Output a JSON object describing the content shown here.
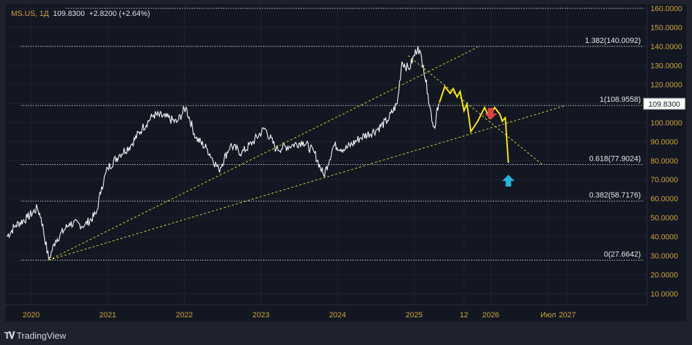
{
  "legend": {
    "symbol": "MS.US, 1Д",
    "price": "109.8300",
    "change": "+2.8200 (+2.64%)"
  },
  "brand": "TradingView",
  "chart_data": {
    "type": "line",
    "title": "MS.US, 1Д",
    "ylim": [
      5,
      165
    ],
    "yticks": [
      160,
      150,
      140,
      130,
      120,
      110,
      100,
      90,
      80,
      70,
      60,
      50,
      40,
      30,
      20,
      10
    ],
    "xticks": [
      {
        "t": 2020,
        "label": "2020"
      },
      {
        "t": 2021,
        "label": "2021"
      },
      {
        "t": 2022,
        "label": "2022"
      },
      {
        "t": 2023,
        "label": "2023"
      },
      {
        "t": 2024,
        "label": "2024"
      },
      {
        "t": 2025,
        "label": "2025"
      },
      {
        "t": 2025.65,
        "label": "12"
      },
      {
        "t": 2026,
        "label": "2026"
      },
      {
        "t": 2026.75,
        "label": "Июл"
      },
      {
        "t": 2027,
        "label": "2027"
      }
    ],
    "current_price": {
      "value": 109.83,
      "label": "109.8300"
    },
    "price_series": [
      [
        2019.68,
        40
      ],
      [
        2019.8,
        46
      ],
      [
        2019.95,
        50
      ],
      [
        2020.08,
        55
      ],
      [
        2020.13,
        50
      ],
      [
        2020.23,
        28
      ],
      [
        2020.32,
        38
      ],
      [
        2020.5,
        47
      ],
      [
        2020.7,
        46
      ],
      [
        2020.85,
        52
      ],
      [
        2020.92,
        66
      ],
      [
        2021.0,
        76
      ],
      [
        2021.15,
        83
      ],
      [
        2021.3,
        88
      ],
      [
        2021.45,
        97
      ],
      [
        2021.6,
        104
      ],
      [
        2021.75,
        103
      ],
      [
        2021.9,
        100
      ],
      [
        2022.02,
        108
      ],
      [
        2022.15,
        92
      ],
      [
        2022.3,
        86
      ],
      [
        2022.45,
        75
      ],
      [
        2022.6,
        88
      ],
      [
        2022.75,
        84
      ],
      [
        2022.9,
        90
      ],
      [
        2023.05,
        97
      ],
      [
        2023.2,
        86
      ],
      [
        2023.4,
        88
      ],
      [
        2023.55,
        90
      ],
      [
        2023.7,
        84
      ],
      [
        2023.82,
        72
      ],
      [
        2023.95,
        88
      ],
      [
        2024.1,
        86
      ],
      [
        2024.3,
        92
      ],
      [
        2024.5,
        96
      ],
      [
        2024.65,
        101
      ],
      [
        2024.78,
        110
      ],
      [
        2024.84,
        132
      ],
      [
        2024.93,
        128
      ],
      [
        2025.05,
        140
      ],
      [
        2025.12,
        130
      ],
      [
        2025.18,
        115
      ],
      [
        2025.24,
        100
      ],
      [
        2025.27,
        97
      ],
      [
        2025.3,
        108
      ],
      [
        2025.33,
        110
      ]
    ],
    "projection": [
      [
        2025.33,
        110.5
      ],
      [
        2025.4,
        118.9
      ],
      [
        2025.47,
        115.3
      ],
      [
        2025.51,
        117.8
      ],
      [
        2025.56,
        113.4
      ],
      [
        2025.6,
        116.3
      ],
      [
        2025.65,
        106.1
      ],
      [
        2025.69,
        109.8
      ],
      [
        2025.74,
        95.2
      ],
      [
        2025.83,
        100.7
      ],
      [
        2025.92,
        107.9
      ],
      [
        2025.98,
        102.5
      ],
      [
        2026.05,
        107.9
      ],
      [
        2026.12,
        104.3
      ],
      [
        2026.15,
        100.7
      ],
      [
        2026.19,
        102.5
      ],
      [
        2026.23,
        78.8
      ]
    ],
    "trendlines": [
      [
        [
          2020.23,
          27.7
        ],
        [
          2025.83,
          139.6
        ]
      ],
      [
        [
          2020.23,
          27.7
        ],
        [
          2026.96,
          108.7
        ]
      ],
      [
        [
          2024.92,
          135.2
        ],
        [
          2026.68,
          77.7
        ]
      ]
    ],
    "fib_levels": [
      {
        "value": 140.0092,
        "label": "1.382(140.0092)"
      },
      {
        "value": 108.9558,
        "label": "1(108.9558)"
      },
      {
        "value": 77.9024,
        "label": "0.618(77.9024)"
      },
      {
        "value": 58.7176,
        "label": "0.382(58.7176)"
      },
      {
        "value": 27.6642,
        "label": "0(27.6642)"
      }
    ],
    "top_line": 160,
    "markers": [
      {
        "type": "down-arrow",
        "t": 2026.0,
        "p": 104,
        "color": "#e0404a"
      },
      {
        "type": "up-arrow",
        "t": 2026.23,
        "p": 70,
        "color": "#22b8d8"
      }
    ],
    "colors": {
      "price": "#ffffff",
      "projection": "#ffee00",
      "trend": "#e6d43a",
      "axis_text": "#d1a53c"
    }
  }
}
